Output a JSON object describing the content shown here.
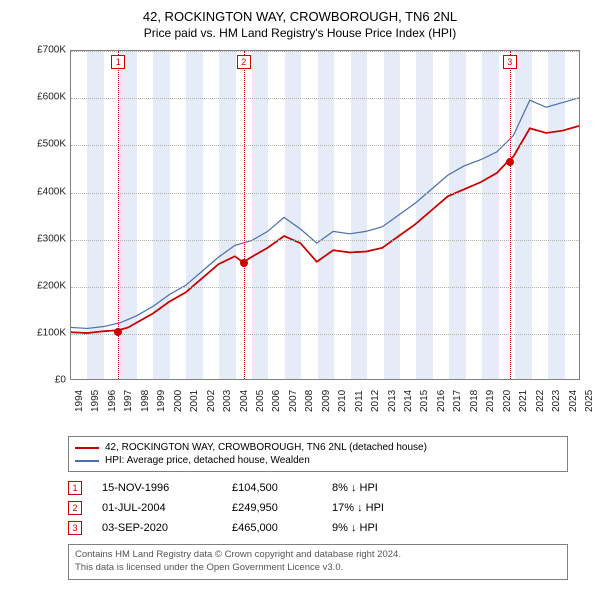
{
  "title": "42, ROCKINGTON WAY, CROWBOROUGH, TN6 2NL",
  "subtitle": "Price paid vs. HM Land Registry's House Price Index (HPI)",
  "chart": {
    "type": "line",
    "background_color": "#ffffff",
    "shade_color": "#e6ecf7",
    "grid_color": "#b0b0b0",
    "border_color": "#808080",
    "ylim": [
      0,
      700000
    ],
    "ytick_step": 100000,
    "yticks": [
      "£0",
      "£100K",
      "£200K",
      "£300K",
      "£400K",
      "£500K",
      "£600K",
      "£700K"
    ],
    "xlim": [
      1994,
      2025
    ],
    "xticks": [
      1994,
      1995,
      1996,
      1997,
      1998,
      1999,
      2000,
      2001,
      2002,
      2003,
      2004,
      2005,
      2006,
      2007,
      2008,
      2009,
      2010,
      2011,
      2012,
      2013,
      2014,
      2015,
      2016,
      2017,
      2018,
      2019,
      2020,
      2021,
      2022,
      2023,
      2024,
      2025
    ],
    "series": [
      {
        "name": "42, ROCKINGTON WAY, CROWBOROUGH, TN6 2NL (detached house)",
        "color": "#cc0000",
        "line_width": 1.6,
        "points": [
          [
            1994,
            100000
          ],
          [
            1995,
            98000
          ],
          [
            1996,
            102000
          ],
          [
            1996.87,
            104000
          ],
          [
            1997.5,
            110000
          ],
          [
            1998,
            120000
          ],
          [
            1999,
            140000
          ],
          [
            2000,
            165000
          ],
          [
            2001,
            185000
          ],
          [
            2002,
            215000
          ],
          [
            2003,
            245000
          ],
          [
            2004,
            262000
          ],
          [
            2004.5,
            249000
          ],
          [
            2005,
            260000
          ],
          [
            2006,
            280000
          ],
          [
            2007,
            305000
          ],
          [
            2008,
            290000
          ],
          [
            2009,
            250000
          ],
          [
            2010,
            275000
          ],
          [
            2011,
            270000
          ],
          [
            2012,
            272000
          ],
          [
            2013,
            280000
          ],
          [
            2014,
            305000
          ],
          [
            2015,
            330000
          ],
          [
            2016,
            360000
          ],
          [
            2017,
            390000
          ],
          [
            2018,
            405000
          ],
          [
            2019,
            420000
          ],
          [
            2020,
            440000
          ],
          [
            2020.67,
            465000
          ],
          [
            2021,
            475000
          ],
          [
            2022,
            535000
          ],
          [
            2023,
            525000
          ],
          [
            2024,
            530000
          ],
          [
            2025,
            540000
          ]
        ]
      },
      {
        "name": "HPI: Average price, detached house, Wealden",
        "color": "#4a6db0",
        "line_width": 1.2,
        "points": [
          [
            1994,
            110000
          ],
          [
            1995,
            108000
          ],
          [
            1996,
            112000
          ],
          [
            1997,
            120000
          ],
          [
            1998,
            135000
          ],
          [
            1999,
            155000
          ],
          [
            2000,
            180000
          ],
          [
            2001,
            200000
          ],
          [
            2002,
            230000
          ],
          [
            2003,
            260000
          ],
          [
            2004,
            285000
          ],
          [
            2005,
            295000
          ],
          [
            2006,
            315000
          ],
          [
            2007,
            345000
          ],
          [
            2008,
            320000
          ],
          [
            2009,
            290000
          ],
          [
            2010,
            315000
          ],
          [
            2011,
            310000
          ],
          [
            2012,
            315000
          ],
          [
            2013,
            325000
          ],
          [
            2014,
            350000
          ],
          [
            2015,
            375000
          ],
          [
            2016,
            405000
          ],
          [
            2017,
            435000
          ],
          [
            2018,
            455000
          ],
          [
            2019,
            468000
          ],
          [
            2020,
            485000
          ],
          [
            2021,
            520000
          ],
          [
            2022,
            595000
          ],
          [
            2023,
            580000
          ],
          [
            2024,
            590000
          ],
          [
            2025,
            600000
          ]
        ]
      }
    ],
    "markers": [
      {
        "n": "1",
        "x": 1996.87,
        "y": 104500,
        "line_color": "#cc0000"
      },
      {
        "n": "2",
        "x": 2004.5,
        "y": 249950,
        "line_color": "#cc0000"
      },
      {
        "n": "3",
        "x": 2020.67,
        "y": 465000,
        "line_color": "#cc0000"
      }
    ]
  },
  "legend": {
    "items": [
      {
        "label": "42, ROCKINGTON WAY, CROWBOROUGH, TN6 2NL (detached house)",
        "color": "#cc0000"
      },
      {
        "label": "HPI: Average price, detached house, Wealden",
        "color": "#4a6db0"
      }
    ]
  },
  "marker_rows": [
    {
      "n": "1",
      "date": "15-NOV-1996",
      "price": "£104,500",
      "hpi": "8% ↓ HPI"
    },
    {
      "n": "2",
      "date": "01-JUL-2004",
      "price": "£249,950",
      "hpi": "17% ↓ HPI"
    },
    {
      "n": "3",
      "date": "03-SEP-2020",
      "price": "£465,000",
      "hpi": "9% ↓ HPI"
    }
  ],
  "footer": {
    "line1": "Contains HM Land Registry data © Crown copyright and database right 2024.",
    "line2": "This data is licensed under the Open Government Licence v3.0."
  }
}
